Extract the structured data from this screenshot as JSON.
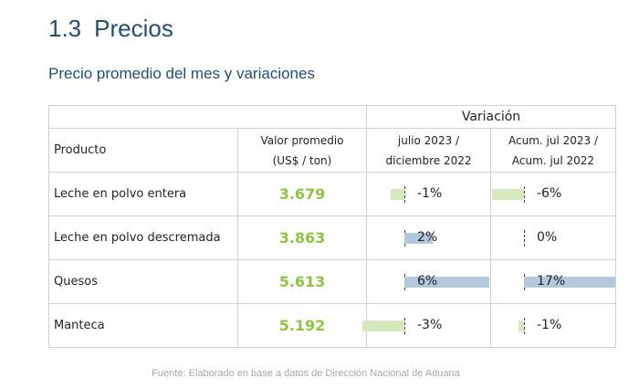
{
  "section": {
    "number": "1.3",
    "title": "Precios"
  },
  "subtitle": "Precio promedio del mes y variaciones",
  "table": {
    "header_variation": "Variación",
    "columns": {
      "product": "Producto",
      "value_line1": "Valor promedio",
      "value_line2": "(US$ / ton)",
      "var1_line1": "julio 2023 /",
      "var1_line2": "diciembre 2022",
      "var2_line1": "Acum. jul 2023 /",
      "var2_line2": "Acum. jul 2022"
    },
    "rows": [
      {
        "product": "Leche en polvo entera",
        "value": "3.679",
        "var1": -1,
        "var1_label": "-1%",
        "var2": -6,
        "var2_label": "-6%"
      },
      {
        "product": "Leche en polvo descremada",
        "value": "3.863",
        "var1": 2,
        "var1_label": "2%",
        "var2": 0,
        "var2_label": "0%"
      },
      {
        "product": "Quesos",
        "value": "5.613",
        "var1": 6,
        "var1_label": "6%",
        "var2": 17,
        "var2_label": "17%"
      },
      {
        "product": "Manteca",
        "value": "5.192",
        "var1": -3,
        "var1_label": "-3%",
        "var2": -1,
        "var2_label": "-1%"
      }
    ]
  },
  "colors": {
    "value_text": "#8cc63f",
    "negative_bar": "#d6e8bd",
    "positive_bar": "#b3c7dd",
    "title": "#1f4e79"
  },
  "source": "Fuente: Elaborado en base a datos de Dirección Nacional de Aduana"
}
